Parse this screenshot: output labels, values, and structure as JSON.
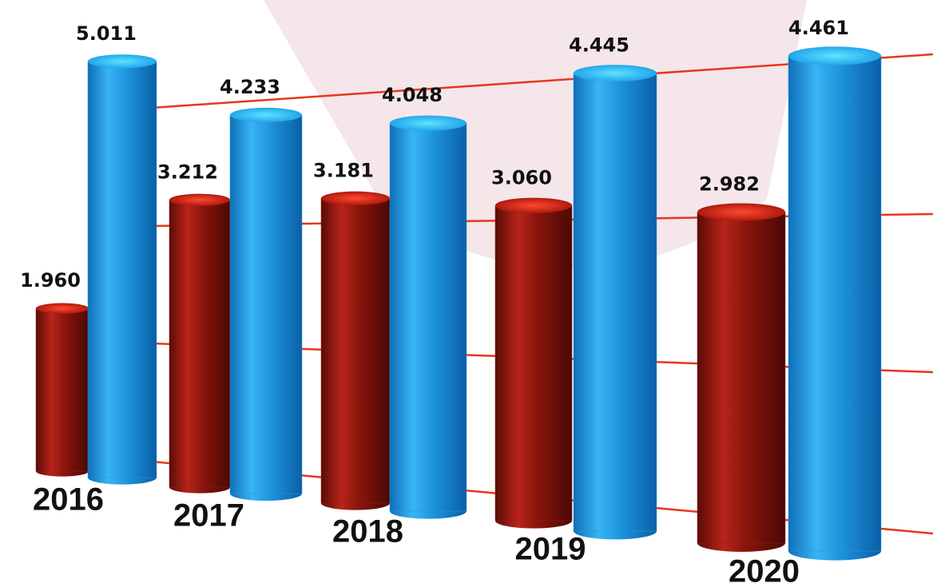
{
  "chart_data": {
    "type": "bar3d",
    "categories": [
      "2016",
      "2017",
      "2018",
      "2019",
      "2020"
    ],
    "series": [
      {
        "color": "#9e1a0e",
        "values": [
          1960,
          3212,
          3181,
          3060,
          2982
        ],
        "value_labels": [
          "1.960",
          "3.212",
          "3.181",
          "3.060",
          "2.982"
        ]
      },
      {
        "color": "#1e9be0",
        "values": [
          5011,
          4233,
          4048,
          4445,
          4461
        ],
        "value_labels": [
          "5.011",
          "4.233",
          "4.048",
          "4.445",
          "4.461"
        ]
      }
    ]
  }
}
